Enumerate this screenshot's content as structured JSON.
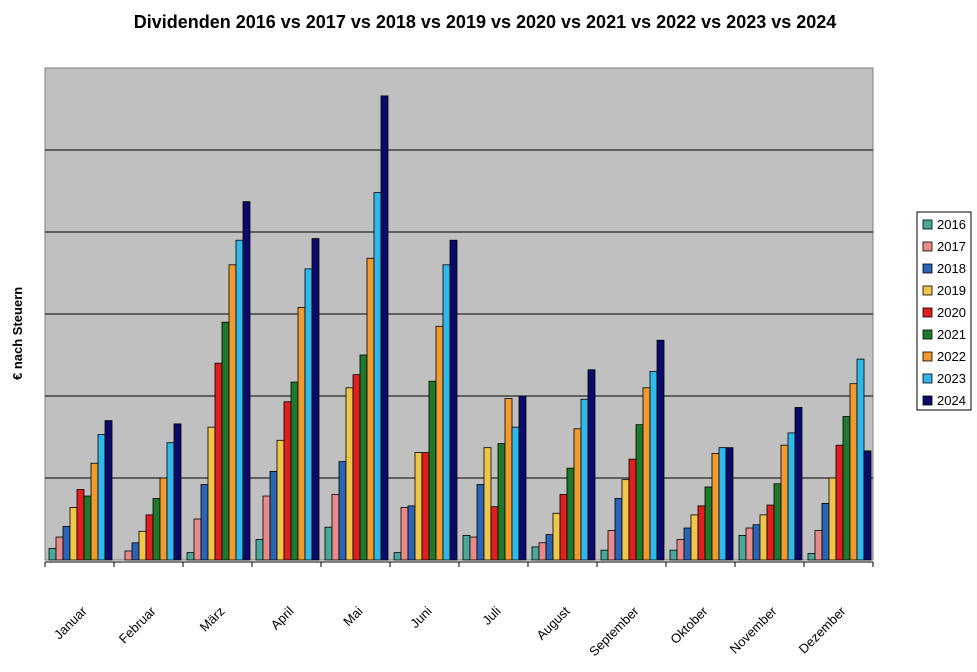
{
  "chart_data": {
    "type": "bar",
    "title": "Dividenden 2016 vs 2017 vs 2018 vs 2019 vs 2020 vs 2021 vs 2022 vs 2023 vs 2024",
    "ylabel": "€ nach Steuern",
    "xlabel": "",
    "grid": true,
    "legend_position": "right",
    "ylim": [
      0,
      600
    ],
    "categories": [
      "Januar",
      "Februar",
      "März",
      "April",
      "Mai",
      "Juni",
      "Juli",
      "August",
      "September",
      "Oktober",
      "November",
      "Dezember"
    ],
    "series": [
      {
        "name": "2016",
        "color": "#4aa89a",
        "values": [
          14,
          0,
          9,
          25,
          40,
          9,
          30,
          16,
          12,
          12,
          30,
          8
        ]
      },
      {
        "name": "2017",
        "color": "#e88a8a",
        "values": [
          28,
          11,
          50,
          78,
          80,
          64,
          28,
          21,
          36,
          25,
          39,
          36
        ]
      },
      {
        "name": "2018",
        "color": "#2b64b5",
        "values": [
          41,
          21,
          92,
          108,
          120,
          66,
          92,
          31,
          75,
          39,
          43,
          69
        ]
      },
      {
        "name": "2019",
        "color": "#f0c64a",
        "values": [
          64,
          35,
          162,
          146,
          210,
          131,
          137,
          57,
          98,
          55,
          55,
          100
        ]
      },
      {
        "name": "2020",
        "color": "#e02020",
        "values": [
          86,
          55,
          240,
          193,
          226,
          131,
          65,
          80,
          123,
          66,
          67,
          140
        ]
      },
      {
        "name": "2021",
        "color": "#1e7a2a",
        "values": [
          78,
          75,
          290,
          217,
          250,
          218,
          142,
          112,
          165,
          89,
          93,
          175
        ]
      },
      {
        "name": "2022",
        "color": "#f09a30",
        "values": [
          118,
          100,
          360,
          308,
          368,
          285,
          197,
          160,
          210,
          130,
          140,
          215
        ]
      },
      {
        "name": "2023",
        "color": "#30b8e8",
        "values": [
          153,
          143,
          390,
          355,
          448,
          360,
          162,
          196,
          230,
          137,
          155,
          245
        ]
      },
      {
        "name": "2024",
        "color": "#0a0a6a",
        "values": [
          170,
          166,
          437,
          392,
          566,
          390,
          200,
          232,
          268,
          137,
          186,
          133
        ]
      }
    ]
  }
}
